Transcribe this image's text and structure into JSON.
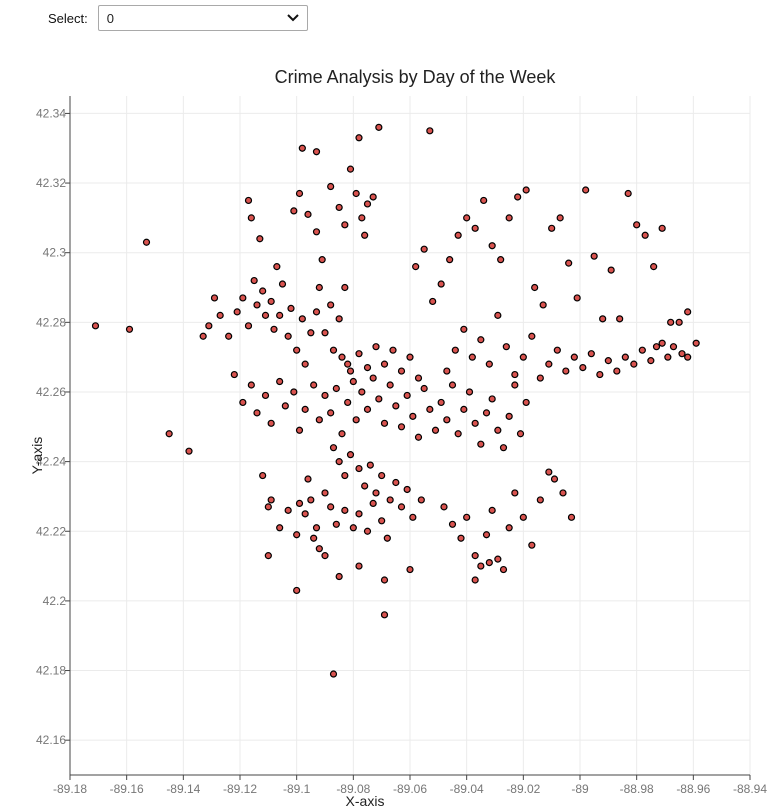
{
  "controls": {
    "select_label": "Select:",
    "select_value": "0"
  },
  "chart_data": {
    "type": "scatter",
    "title": "Crime Analysis by Day of the Week",
    "xlabel": "X-axis",
    "ylabel": "Y-axis",
    "xlim": [
      -89.18,
      -88.94
    ],
    "ylim": [
      42.15,
      42.345
    ],
    "xticks": [
      "-89.18",
      "-89.16",
      "-89.14",
      "-89.12",
      "-89.1",
      "-89.08",
      "-89.06",
      "-89.04",
      "-89.02",
      "-89",
      "-88.98",
      "-88.96",
      "-88.94"
    ],
    "yticks": [
      "42.16",
      "42.18",
      "42.2",
      "42.22",
      "42.24",
      "42.26",
      "42.28",
      "42.3",
      "42.32",
      "42.34"
    ],
    "grid": true,
    "point_color": "#d9534f",
    "point_edge_color": "#000000",
    "points": [
      [
        -89.171,
        42.279
      ],
      [
        -89.159,
        42.278
      ],
      [
        -89.153,
        42.303
      ],
      [
        -89.145,
        42.248
      ],
      [
        -89.138,
        42.243
      ],
      [
        -89.133,
        42.276
      ],
      [
        -89.131,
        42.279
      ],
      [
        -89.129,
        42.287
      ],
      [
        -89.127,
        42.282
      ],
      [
        -89.124,
        42.276
      ],
      [
        -89.121,
        42.283
      ],
      [
        -89.119,
        42.287
      ],
      [
        -89.117,
        42.279
      ],
      [
        -89.115,
        42.292
      ],
      [
        -89.114,
        42.285
      ],
      [
        -89.112,
        42.289
      ],
      [
        -89.111,
        42.282
      ],
      [
        -89.109,
        42.286
      ],
      [
        -89.108,
        42.278
      ],
      [
        -89.106,
        42.282
      ],
      [
        -89.105,
        42.291
      ],
      [
        -89.103,
        42.276
      ],
      [
        -89.102,
        42.284
      ],
      [
        -89.1,
        42.272
      ],
      [
        -89.098,
        42.281
      ],
      [
        -89.097,
        42.268
      ],
      [
        -89.095,
        42.277
      ],
      [
        -89.093,
        42.283
      ],
      [
        -89.092,
        42.29
      ],
      [
        -89.09,
        42.277
      ],
      [
        -89.088,
        42.285
      ],
      [
        -89.087,
        42.272
      ],
      [
        -89.085,
        42.281
      ],
      [
        -89.083,
        42.29
      ],
      [
        -89.082,
        42.268
      ],
      [
        -89.117,
        42.315
      ],
      [
        -89.116,
        42.31
      ],
      [
        -89.113,
        42.304
      ],
      [
        -89.107,
        42.296
      ],
      [
        -89.101,
        42.312
      ],
      [
        -89.099,
        42.317
      ],
      [
        -89.096,
        42.311
      ],
      [
        -89.093,
        42.306
      ],
      [
        -89.091,
        42.298
      ],
      [
        -89.088,
        42.319
      ],
      [
        -89.085,
        42.313
      ],
      [
        -89.083,
        42.308
      ],
      [
        -89.081,
        42.324
      ],
      [
        -89.079,
        42.317
      ],
      [
        -89.077,
        42.31
      ],
      [
        -89.075,
        42.314
      ],
      [
        -89.073,
        42.316
      ],
      [
        -89.076,
        42.305
      ],
      [
        -89.078,
        42.333
      ],
      [
        -89.071,
        42.336
      ],
      [
        -89.093,
        42.329
      ],
      [
        -89.098,
        42.33
      ],
      [
        -89.053,
        42.335
      ],
      [
        -89.122,
        42.265
      ],
      [
        -89.119,
        42.257
      ],
      [
        -89.116,
        42.262
      ],
      [
        -89.114,
        42.254
      ],
      [
        -89.111,
        42.259
      ],
      [
        -89.109,
        42.251
      ],
      [
        -89.106,
        42.263
      ],
      [
        -89.104,
        42.256
      ],
      [
        -89.101,
        42.26
      ],
      [
        -89.099,
        42.249
      ],
      [
        -89.097,
        42.255
      ],
      [
        -89.094,
        42.262
      ],
      [
        -89.092,
        42.252
      ],
      [
        -89.09,
        42.259
      ],
      [
        -89.088,
        42.254
      ],
      [
        -89.086,
        42.261
      ],
      [
        -89.084,
        42.248
      ],
      [
        -89.082,
        42.257
      ],
      [
        -89.08,
        42.263
      ],
      [
        -89.079,
        42.252
      ],
      [
        -89.077,
        42.26
      ],
      [
        -89.075,
        42.255
      ],
      [
        -89.073,
        42.264
      ],
      [
        -89.071,
        42.258
      ],
      [
        -89.069,
        42.251
      ],
      [
        -89.067,
        42.262
      ],
      [
        -89.065,
        42.256
      ],
      [
        -89.063,
        42.25
      ],
      [
        -89.061,
        42.259
      ],
      [
        -89.059,
        42.253
      ],
      [
        -89.057,
        42.247
      ],
      [
        -89.055,
        42.261
      ],
      [
        -89.053,
        42.255
      ],
      [
        -89.051,
        42.249
      ],
      [
        -89.049,
        42.257
      ],
      [
        -89.047,
        42.252
      ],
      [
        -89.045,
        42.262
      ],
      [
        -89.043,
        42.248
      ],
      [
        -89.041,
        42.255
      ],
      [
        -89.039,
        42.26
      ],
      [
        -89.037,
        42.251
      ],
      [
        -89.035,
        42.245
      ],
      [
        -89.033,
        42.254
      ],
      [
        -89.031,
        42.258
      ],
      [
        -89.029,
        42.249
      ],
      [
        -89.027,
        42.244
      ],
      [
        -89.025,
        42.253
      ],
      [
        -89.023,
        42.262
      ],
      [
        -89.021,
        42.248
      ],
      [
        -89.019,
        42.257
      ],
      [
        -89.084,
        42.27
      ],
      [
        -89.081,
        42.266
      ],
      [
        -89.078,
        42.271
      ],
      [
        -89.075,
        42.267
      ],
      [
        -89.072,
        42.273
      ],
      [
        -89.069,
        42.268
      ],
      [
        -89.066,
        42.272
      ],
      [
        -89.063,
        42.266
      ],
      [
        -89.06,
        42.27
      ],
      [
        -89.057,
        42.264
      ],
      [
        -89.087,
        42.244
      ],
      [
        -89.085,
        42.24
      ],
      [
        -89.083,
        42.236
      ],
      [
        -89.081,
        42.242
      ],
      [
        -89.078,
        42.238
      ],
      [
        -89.076,
        42.233
      ],
      [
        -89.074,
        42.239
      ],
      [
        -89.072,
        42.231
      ],
      [
        -89.07,
        42.236
      ],
      [
        -89.067,
        42.229
      ],
      [
        -89.065,
        42.234
      ],
      [
        -89.063,
        42.227
      ],
      [
        -89.061,
        42.232
      ],
      [
        -89.059,
        42.224
      ],
      [
        -89.056,
        42.229
      ],
      [
        -89.09,
        42.231
      ],
      [
        -89.088,
        42.227
      ],
      [
        -89.086,
        42.222
      ],
      [
        -89.083,
        42.226
      ],
      [
        -89.08,
        42.221
      ],
      [
        -89.078,
        42.225
      ],
      [
        -89.075,
        42.22
      ],
      [
        -89.073,
        42.228
      ],
      [
        -89.07,
        42.223
      ],
      [
        -89.068,
        42.218
      ],
      [
        -89.096,
        42.235
      ],
      [
        -89.095,
        42.229
      ],
      [
        -89.099,
        42.228
      ],
      [
        -89.093,
        42.221
      ],
      [
        -89.092,
        42.215
      ],
      [
        -89.09,
        42.213
      ],
      [
        -89.1,
        42.203
      ],
      [
        -89.085,
        42.207
      ],
      [
        -89.078,
        42.21
      ],
      [
        -89.069,
        42.206
      ],
      [
        -89.069,
        42.196
      ],
      [
        -89.06,
        42.209
      ],
      [
        -89.087,
        42.179
      ],
      [
        -89.048,
        42.227
      ],
      [
        -89.045,
        42.222
      ],
      [
        -89.042,
        42.218
      ],
      [
        -89.04,
        42.224
      ],
      [
        -89.037,
        42.213
      ],
      [
        -89.035,
        42.21
      ],
      [
        -89.033,
        42.219
      ],
      [
        -89.031,
        42.226
      ],
      [
        -89.029,
        42.212
      ],
      [
        -89.027,
        42.209
      ],
      [
        -89.025,
        42.221
      ],
      [
        -89.023,
        42.231
      ],
      [
        -89.02,
        42.224
      ],
      [
        -89.017,
        42.216
      ],
      [
        -89.014,
        42.229
      ],
      [
        -89.011,
        42.237
      ],
      [
        -89.009,
        42.235
      ],
      [
        -89.006,
        42.231
      ],
      [
        -89.003,
        42.224
      ],
      [
        -89.037,
        42.206
      ],
      [
        -89.032,
        42.211
      ],
      [
        -89.047,
        42.266
      ],
      [
        -89.044,
        42.272
      ],
      [
        -89.041,
        42.278
      ],
      [
        -89.038,
        42.27
      ],
      [
        -89.035,
        42.275
      ],
      [
        -89.032,
        42.268
      ],
      [
        -89.029,
        42.282
      ],
      [
        -89.026,
        42.273
      ],
      [
        -89.023,
        42.265
      ],
      [
        -89.02,
        42.27
      ],
      [
        -89.017,
        42.276
      ],
      [
        -89.014,
        42.264
      ],
      [
        -89.011,
        42.268
      ],
      [
        -89.008,
        42.272
      ],
      [
        -89.005,
        42.266
      ],
      [
        -89.002,
        42.27
      ],
      [
        -88.999,
        42.267
      ],
      [
        -88.996,
        42.271
      ],
      [
        -88.993,
        42.265
      ],
      [
        -88.99,
        42.269
      ],
      [
        -88.987,
        42.266
      ],
      [
        -88.984,
        42.27
      ],
      [
        -88.981,
        42.268
      ],
      [
        -88.978,
        42.272
      ],
      [
        -88.975,
        42.269
      ],
      [
        -88.973,
        42.273
      ],
      [
        -88.971,
        42.274
      ],
      [
        -88.969,
        42.27
      ],
      [
        -88.967,
        42.273
      ],
      [
        -88.964,
        42.271
      ],
      [
        -88.962,
        42.27
      ],
      [
        -88.959,
        42.274
      ],
      [
        -89.058,
        42.296
      ],
      [
        -89.055,
        42.301
      ],
      [
        -89.052,
        42.286
      ],
      [
        -89.049,
        42.291
      ],
      [
        -89.046,
        42.298
      ],
      [
        -89.043,
        42.305
      ],
      [
        -89.04,
        42.31
      ],
      [
        -89.037,
        42.307
      ],
      [
        -89.034,
        42.315
      ],
      [
        -89.031,
        42.302
      ],
      [
        -89.028,
        42.298
      ],
      [
        -89.025,
        42.31
      ],
      [
        -89.022,
        42.316
      ],
      [
        -89.019,
        42.318
      ],
      [
        -89.016,
        42.29
      ],
      [
        -89.013,
        42.285
      ],
      [
        -89.01,
        42.307
      ],
      [
        -89.007,
        42.31
      ],
      [
        -89.004,
        42.297
      ],
      [
        -89.001,
        42.287
      ],
      [
        -88.998,
        42.318
      ],
      [
        -88.995,
        42.299
      ],
      [
        -88.992,
        42.281
      ],
      [
        -88.989,
        42.295
      ],
      [
        -88.986,
        42.281
      ],
      [
        -88.983,
        42.317
      ],
      [
        -88.98,
        42.308
      ],
      [
        -88.977,
        42.305
      ],
      [
        -88.974,
        42.296
      ],
      [
        -88.971,
        42.307
      ],
      [
        -88.968,
        42.28
      ],
      [
        -88.965,
        42.28
      ],
      [
        -88.962,
        42.283
      ],
      [
        -89.112,
        42.236
      ],
      [
        -89.109,
        42.229
      ],
      [
        -89.106,
        42.221
      ],
      [
        -89.103,
        42.226
      ],
      [
        -89.1,
        42.219
      ],
      [
        -89.097,
        42.225
      ],
      [
        -89.094,
        42.218
      ],
      [
        -89.11,
        42.213
      ],
      [
        -89.11,
        42.227
      ]
    ]
  }
}
